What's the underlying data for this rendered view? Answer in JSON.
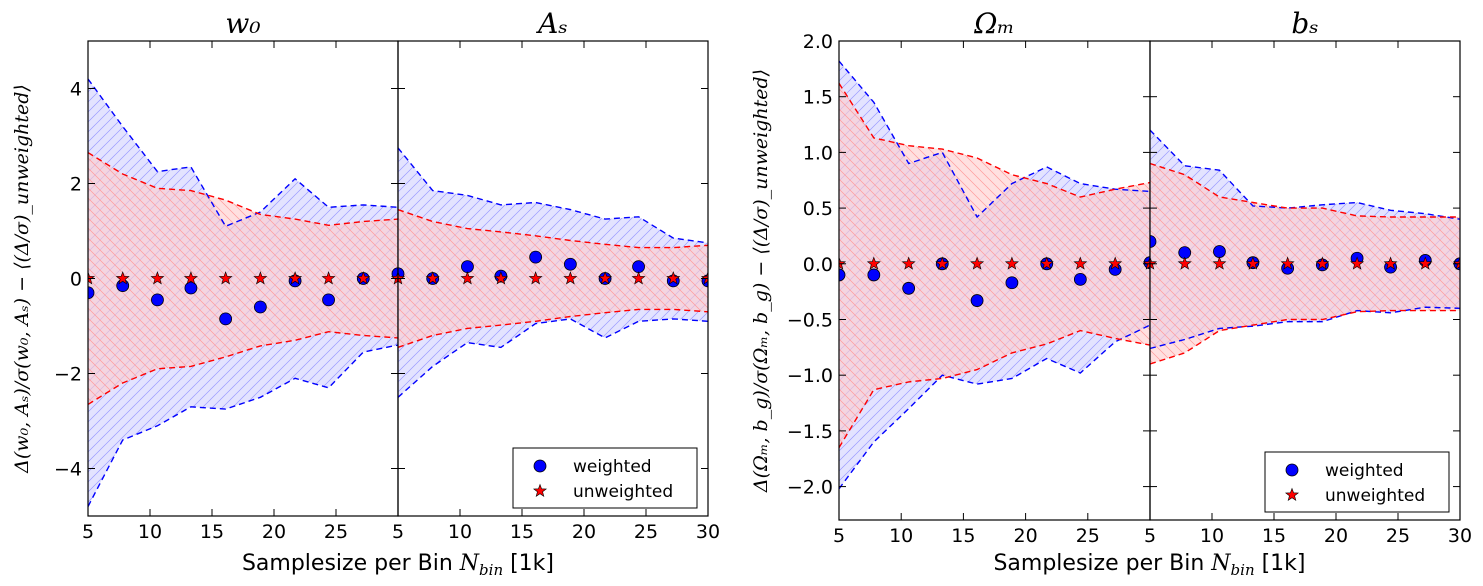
{
  "colors": {
    "weighted": "#0000ff",
    "unweighted": "#ff0000",
    "weighted_band": "#ccccff",
    "unweighted_band": "#ffcccc"
  },
  "chart_data": [
    {
      "type": "scatter",
      "panel": "left",
      "xlabel_prefix": "Samplesize per Bin ",
      "xlabel_math": "N_bin",
      "xlabel_suffix": " [1k]",
      "ylabel": "Δ(w₀, Aₛ)/σ(w₀, Aₛ) − ⟨(Δ/σ)_unweighted⟩",
      "ylim": [
        -5,
        5
      ],
      "yticks": [
        {
          "v": -4,
          "label": "−4"
        },
        {
          "v": -2,
          "label": "−2"
        },
        {
          "v": 0,
          "label": "0"
        },
        {
          "v": 2,
          "label": "2"
        },
        {
          "v": 4,
          "label": "4"
        }
      ],
      "legend": {
        "position": "lower-right",
        "weighted": "weighted",
        "unweighted": "unweighted"
      },
      "subplots": [
        {
          "title": "w₀",
          "xlim": [
            5,
            30
          ],
          "xticks": [
            {
              "v": 5,
              "label": "5"
            },
            {
              "v": 10,
              "label": "10"
            },
            {
              "v": 15,
              "label": "15"
            },
            {
              "v": 20,
              "label": "20"
            },
            {
              "v": 25,
              "label": "25"
            }
          ],
          "x": [
            5,
            7.8,
            10.6,
            13.3,
            16.1,
            18.9,
            21.7,
            24.4,
            27.2,
            30
          ],
          "weighted": [
            -0.3,
            -0.15,
            -0.45,
            -0.2,
            -0.85,
            -0.6,
            -0.05,
            -0.45,
            0.0,
            0.1
          ],
          "unweighted": [
            0,
            0,
            0,
            0,
            0,
            0,
            0,
            0,
            0,
            0
          ],
          "weighted_upper": [
            4.2,
            3.2,
            2.25,
            2.35,
            1.1,
            1.4,
            2.1,
            1.5,
            1.55,
            1.5
          ],
          "weighted_lower": [
            -4.8,
            -3.4,
            -3.1,
            -2.7,
            -2.75,
            -2.5,
            -2.1,
            -2.3,
            -1.55,
            -1.4
          ],
          "unweighted_upper": [
            2.65,
            2.2,
            1.9,
            1.85,
            1.65,
            1.35,
            1.25,
            1.12,
            1.2,
            1.25
          ],
          "unweighted_lower": [
            -2.65,
            -2.2,
            -1.9,
            -1.85,
            -1.65,
            -1.42,
            -1.3,
            -1.12,
            -1.2,
            -1.25
          ]
        },
        {
          "title": "Aₛ",
          "xlim": [
            5,
            30
          ],
          "xticks": [
            {
              "v": 5,
              "label": "5"
            },
            {
              "v": 10,
              "label": "10"
            },
            {
              "v": 15,
              "label": "15"
            },
            {
              "v": 20,
              "label": "20"
            },
            {
              "v": 25,
              "label": "25"
            },
            {
              "v": 30,
              "label": "30"
            }
          ],
          "x": [
            5,
            7.8,
            10.6,
            13.3,
            16.1,
            18.9,
            21.7,
            24.4,
            27.2,
            30
          ],
          "weighted": [
            0.1,
            0.0,
            0.25,
            0.05,
            0.45,
            0.3,
            0.0,
            0.25,
            -0.05,
            -0.05
          ],
          "unweighted": [
            0,
            0,
            0,
            0,
            0,
            0,
            0,
            0,
            0,
            0
          ],
          "weighted_upper": [
            2.75,
            1.85,
            1.75,
            1.55,
            1.6,
            1.45,
            1.25,
            1.3,
            0.85,
            0.75
          ],
          "weighted_lower": [
            -2.5,
            -1.85,
            -1.35,
            -1.45,
            -0.95,
            -0.85,
            -1.25,
            -0.9,
            -0.85,
            -0.9
          ],
          "unweighted_upper": [
            1.45,
            1.2,
            1.05,
            0.98,
            0.9,
            0.8,
            0.72,
            0.65,
            0.65,
            0.7
          ],
          "unweighted_lower": [
            -1.45,
            -1.2,
            -1.05,
            -0.98,
            -0.9,
            -0.8,
            -0.72,
            -0.65,
            -0.65,
            -0.7
          ]
        }
      ]
    },
    {
      "type": "scatter",
      "panel": "right",
      "xlabel_prefix": "Samplesize per Bin ",
      "xlabel_math": "N_bin",
      "xlabel_suffix": " [1k]",
      "ylabel": "Δ(Ωₘ, b_g)/σ(Ωₘ, b_g) − ⟨(Δ/σ)_unweighted⟩",
      "ylim": [
        -2.3,
        2.0
      ],
      "yticks": [
        {
          "v": -2.0,
          "label": "−2.0"
        },
        {
          "v": -1.5,
          "label": "−1.5"
        },
        {
          "v": -1.0,
          "label": "−1.0"
        },
        {
          "v": -0.5,
          "label": "−0.5"
        },
        {
          "v": 0.0,
          "label": "0.0"
        },
        {
          "v": 0.5,
          "label": "0.5"
        },
        {
          "v": 1.0,
          "label": "1.0"
        },
        {
          "v": 1.5,
          "label": "1.5"
        },
        {
          "v": 2.0,
          "label": "2.0"
        }
      ],
      "legend": {
        "position": "lower-right",
        "weighted": "weighted",
        "unweighted": "unweighted"
      },
      "subplots": [
        {
          "title": "Ωₘ",
          "xlim": [
            5,
            30
          ],
          "xticks": [
            {
              "v": 5,
              "label": "5"
            },
            {
              "v": 10,
              "label": "10"
            },
            {
              "v": 15,
              "label": "15"
            },
            {
              "v": 20,
              "label": "20"
            },
            {
              "v": 25,
              "label": "25"
            }
          ],
          "x": [
            5,
            7.8,
            10.6,
            13.3,
            16.1,
            18.9,
            21.7,
            24.4,
            27.2,
            30
          ],
          "weighted": [
            -0.1,
            -0.1,
            -0.22,
            0.0,
            -0.33,
            -0.17,
            0.0,
            -0.14,
            -0.05,
            0.01
          ],
          "unweighted": [
            0,
            0,
            0,
            0,
            0,
            0,
            0,
            0,
            0,
            0
          ],
          "weighted_upper": [
            1.82,
            1.45,
            0.9,
            1.0,
            0.42,
            0.72,
            0.87,
            0.72,
            0.67,
            0.65
          ],
          "weighted_lower": [
            -2.02,
            -1.6,
            -1.3,
            -1.0,
            -1.08,
            -1.03,
            -0.85,
            -0.98,
            -0.7,
            -0.55
          ],
          "unweighted_upper": [
            1.62,
            1.13,
            1.06,
            1.03,
            0.95,
            0.8,
            0.72,
            0.6,
            0.67,
            0.73
          ],
          "unweighted_lower": [
            -1.65,
            -1.13,
            -1.06,
            -1.03,
            -0.95,
            -0.8,
            -0.72,
            -0.6,
            -0.67,
            -0.73
          ]
        },
        {
          "title": "bₛ",
          "xlim": [
            5,
            30
          ],
          "xticks": [
            {
              "v": 5,
              "label": "5"
            },
            {
              "v": 10,
              "label": "10"
            },
            {
              "v": 15,
              "label": "15"
            },
            {
              "v": 20,
              "label": "20"
            },
            {
              "v": 25,
              "label": "25"
            },
            {
              "v": 30,
              "label": "30"
            }
          ],
          "x": [
            5,
            7.8,
            10.6,
            13.3,
            16.1,
            18.9,
            21.7,
            24.4,
            27.2,
            30
          ],
          "weighted": [
            0.2,
            0.1,
            0.11,
            0.01,
            -0.04,
            -0.01,
            0.05,
            -0.03,
            0.03,
            0.0
          ],
          "unweighted": [
            0,
            0,
            0,
            0,
            0,
            0,
            0,
            0,
            0,
            0
          ],
          "weighted_upper": [
            1.2,
            0.88,
            0.84,
            0.52,
            0.5,
            0.53,
            0.55,
            0.48,
            0.45,
            0.4
          ],
          "weighted_lower": [
            -0.76,
            -0.68,
            -0.58,
            -0.56,
            -0.52,
            -0.52,
            -0.42,
            -0.44,
            -0.39,
            -0.4
          ],
          "unweighted_upper": [
            0.9,
            0.8,
            0.6,
            0.55,
            0.5,
            0.5,
            0.43,
            0.42,
            0.42,
            0.42
          ],
          "unweighted_lower": [
            -0.9,
            -0.8,
            -0.6,
            -0.55,
            -0.5,
            -0.5,
            -0.43,
            -0.42,
            -0.42,
            -0.42
          ]
        }
      ]
    }
  ]
}
